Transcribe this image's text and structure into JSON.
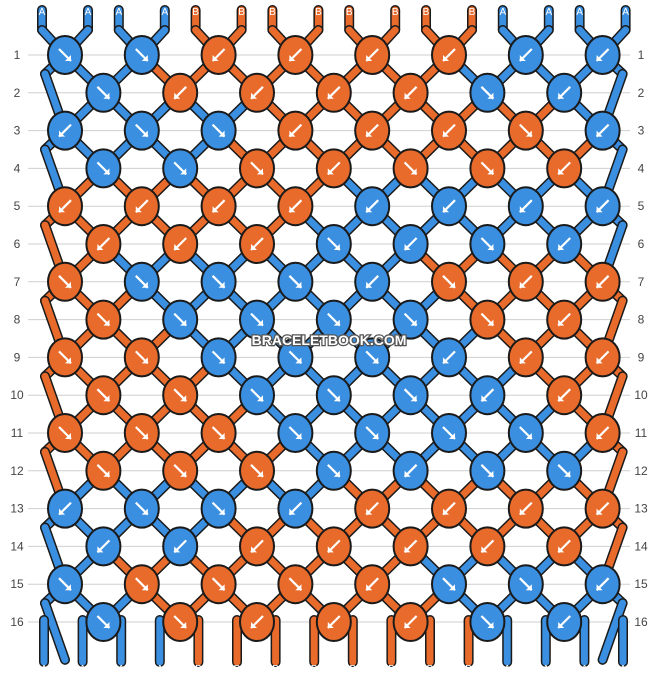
{
  "watermark": "BRACELETBOOK.COM",
  "colors": {
    "A": "#3b8fe0",
    "B": "#e86b2c",
    "outline": "#1a1a1a",
    "grid": "#cfcfcf"
  },
  "rows": [
    "1",
    "2",
    "3",
    "4",
    "5",
    "6",
    "7",
    "8",
    "9",
    "10",
    "11",
    "12",
    "13",
    "14",
    "15",
    "16"
  ],
  "top_strings": [
    "A",
    "A",
    "A",
    "A",
    "B",
    "B",
    "B",
    "B",
    "B",
    "B",
    "B",
    "B",
    "A",
    "A",
    "A",
    "A"
  ],
  "bottom_strings": [
    "A",
    "A",
    "A",
    "A",
    "B",
    "B",
    "B",
    "B",
    "B",
    "B",
    "B",
    "B",
    "A",
    "A",
    "A",
    "A"
  ],
  "knots": [
    [
      {
        "c": "A",
        "d": "r"
      },
      {
        "c": "A",
        "d": "r"
      },
      {
        "c": "B",
        "d": "l"
      },
      {
        "c": "B",
        "d": "l"
      },
      {
        "c": "B",
        "d": "l"
      },
      {
        "c": "B",
        "d": "l"
      },
      {
        "c": "A",
        "d": "l"
      },
      {
        "c": "A",
        "d": "l"
      }
    ],
    [
      {
        "c": "A",
        "d": "r"
      },
      {
        "c": "B",
        "d": "l"
      },
      {
        "c": "B",
        "d": "l"
      },
      {
        "c": "B",
        "d": "l"
      },
      {
        "c": "B",
        "d": "l"
      },
      {
        "c": "A",
        "d": "r"
      },
      {
        "c": "A",
        "d": "l"
      }
    ],
    [
      {
        "c": "A",
        "d": "l"
      },
      {
        "c": "A",
        "d": "r"
      },
      {
        "c": "A",
        "d": "r"
      },
      {
        "c": "B",
        "d": "l"
      },
      {
        "c": "B",
        "d": "l"
      },
      {
        "c": "B",
        "d": "l"
      },
      {
        "c": "B",
        "d": "r"
      },
      {
        "c": "A",
        "d": "l"
      }
    ],
    [
      {
        "c": "A",
        "d": "r"
      },
      {
        "c": "A",
        "d": "r"
      },
      {
        "c": "B",
        "d": "r"
      },
      {
        "c": "B",
        "d": "l"
      },
      {
        "c": "B",
        "d": "r"
      },
      {
        "c": "B",
        "d": "r"
      },
      {
        "c": "B",
        "d": "l"
      }
    ],
    [
      {
        "c": "B",
        "d": "l"
      },
      {
        "c": "B",
        "d": "l"
      },
      {
        "c": "B",
        "d": "l"
      },
      {
        "c": "B",
        "d": "l"
      },
      {
        "c": "A",
        "d": "l"
      },
      {
        "c": "A",
        "d": "l"
      },
      {
        "c": "A",
        "d": "l"
      },
      {
        "c": "A",
        "d": "l"
      }
    ],
    [
      {
        "c": "B",
        "d": "l"
      },
      {
        "c": "B",
        "d": "l"
      },
      {
        "c": "B",
        "d": "l"
      },
      {
        "c": "A",
        "d": "r"
      },
      {
        "c": "A",
        "d": "l"
      },
      {
        "c": "A",
        "d": "r"
      },
      {
        "c": "A",
        "d": "l"
      }
    ],
    [
      {
        "c": "B",
        "d": "r"
      },
      {
        "c": "A",
        "d": "r"
      },
      {
        "c": "A",
        "d": "r"
      },
      {
        "c": "A",
        "d": "r"
      },
      {
        "c": "A",
        "d": "l"
      },
      {
        "c": "B",
        "d": "r"
      },
      {
        "c": "B",
        "d": "l"
      },
      {
        "c": "B",
        "d": "l"
      }
    ],
    [
      {
        "c": "B",
        "d": "r"
      },
      {
        "c": "A",
        "d": "r"
      },
      {
        "c": "A",
        "d": "r"
      },
      {
        "c": "A",
        "d": "r"
      },
      {
        "c": "A",
        "d": "r"
      },
      {
        "c": "B",
        "d": "r"
      },
      {
        "c": "B",
        "d": "l"
      }
    ],
    [
      {
        "c": "B",
        "d": "r"
      },
      {
        "c": "B",
        "d": "r"
      },
      {
        "c": "A",
        "d": "r"
      },
      {
        "c": "A",
        "d": "r"
      },
      {
        "c": "A",
        "d": "r"
      },
      {
        "c": "A",
        "d": "l"
      },
      {
        "c": "B",
        "d": "l"
      },
      {
        "c": "B",
        "d": "l"
      }
    ],
    [
      {
        "c": "B",
        "d": "r"
      },
      {
        "c": "B",
        "d": "r"
      },
      {
        "c": "A",
        "d": "r"
      },
      {
        "c": "A",
        "d": "r"
      },
      {
        "c": "A",
        "d": "r"
      },
      {
        "c": "A",
        "d": "l"
      },
      {
        "c": "B",
        "d": "l"
      }
    ],
    [
      {
        "c": "B",
        "d": "r"
      },
      {
        "c": "B",
        "d": "r"
      },
      {
        "c": "B",
        "d": "r"
      },
      {
        "c": "A",
        "d": "r"
      },
      {
        "c": "A",
        "d": "r"
      },
      {
        "c": "A",
        "d": "r"
      },
      {
        "c": "A",
        "d": "r"
      },
      {
        "c": "B",
        "d": "l"
      }
    ],
    [
      {
        "c": "B",
        "d": "r"
      },
      {
        "c": "B",
        "d": "r"
      },
      {
        "c": "B",
        "d": "r"
      },
      {
        "c": "A",
        "d": "r"
      },
      {
        "c": "A",
        "d": "l"
      },
      {
        "c": "A",
        "d": "r"
      },
      {
        "c": "A",
        "d": "r"
      }
    ],
    [
      {
        "c": "A",
        "d": "l"
      },
      {
        "c": "A",
        "d": "r"
      },
      {
        "c": "A",
        "d": "r"
      },
      {
        "c": "A",
        "d": "l"
      },
      {
        "c": "B",
        "d": "l"
      },
      {
        "c": "B",
        "d": "l"
      },
      {
        "c": "B",
        "d": "l"
      },
      {
        "c": "B",
        "d": "l"
      }
    ],
    [
      {
        "c": "A",
        "d": "l"
      },
      {
        "c": "A",
        "d": "l"
      },
      {
        "c": "B",
        "d": "l"
      },
      {
        "c": "B",
        "d": "l"
      },
      {
        "c": "B",
        "d": "l"
      },
      {
        "c": "B",
        "d": "l"
      },
      {
        "c": "B",
        "d": "l"
      }
    ],
    [
      {
        "c": "A",
        "d": "r"
      },
      {
        "c": "B",
        "d": "r"
      },
      {
        "c": "B",
        "d": "r"
      },
      {
        "c": "B",
        "d": "r"
      },
      {
        "c": "B",
        "d": "l"
      },
      {
        "c": "A",
        "d": "r"
      },
      {
        "c": "A",
        "d": "r"
      },
      {
        "c": "A",
        "d": "l"
      }
    ],
    [
      {
        "c": "A",
        "d": "r"
      },
      {
        "c": "B",
        "d": "r"
      },
      {
        "c": "B",
        "d": "l"
      },
      {
        "c": "B",
        "d": "l"
      },
      {
        "c": "B",
        "d": "l"
      },
      {
        "c": "A",
        "d": "r"
      },
      {
        "c": "A",
        "d": "l"
      }
    ]
  ]
}
